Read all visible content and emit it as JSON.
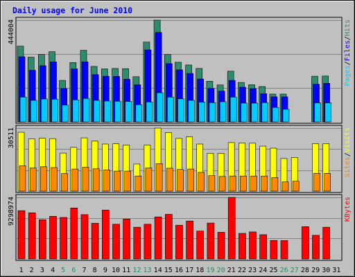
{
  "chart_data": {
    "type": "bar",
    "title": "Daily usage for June 2010",
    "categories": [
      "1",
      "2",
      "3",
      "4",
      "5",
      "6",
      "7",
      "8",
      "9",
      "10",
      "11",
      "12",
      "13",
      "14",
      "15",
      "16",
      "17",
      "18",
      "19",
      "20",
      "21",
      "22",
      "23",
      "24",
      "25",
      "26",
      "27",
      "28",
      "29",
      "30",
      "31"
    ],
    "weekend_days": [
      "5",
      "6",
      "12",
      "13",
      "19",
      "20",
      "26",
      "27"
    ],
    "panels": [
      {
        "id": "hits",
        "ymax_label": "444004",
        "ylim": [
          0,
          444004
        ],
        "legend": [
          "Pages",
          "Files",
          "Hits"
        ],
        "series": [
          {
            "name": "Hits",
            "color": "#2e8b6e",
            "values": [
              330000,
              282000,
              294000,
              306000,
              181000,
              259000,
              312000,
              242000,
              231000,
              233000,
              232000,
              197000,
              348000,
              444004,
              294000,
              260000,
              248000,
              233000,
              177000,
              161000,
              221000,
              172000,
              162000,
              154000,
              121000,
              121000,
              0,
              0,
              199000,
              200000,
              0
            ]
          },
          {
            "name": "Files",
            "color": "#0000ff",
            "values": [
              284000,
              225000,
              245000,
              262000,
              146000,
              231000,
              262000,
              206000,
              199000,
              198000,
              186000,
              162000,
              314000,
              390000,
              254000,
              227000,
              211000,
              187000,
              146000,
              134000,
              181000,
              151000,
              145000,
              123000,
              109000,
              109000,
              0,
              0,
              164000,
              168000,
              0
            ]
          },
          {
            "name": "Pages",
            "color": "#00ccff",
            "values": [
              108000,
              94000,
              100000,
              99000,
              73000,
              96000,
              102000,
              94000,
              91000,
              90000,
              89000,
              75000,
              87000,
              127000,
              108000,
              101000,
              94000,
              86000,
              84000,
              88000,
              108000,
              82000,
              82000,
              84000,
              63000,
              55000,
              0,
              0,
              83000,
              83000,
              0
            ]
          }
        ]
      },
      {
        "id": "visits",
        "ymax_label": "30511",
        "ylim": [
          0,
          30511
        ],
        "legend": [
          "Sites",
          "Visits"
        ],
        "series": [
          {
            "name": "Visits",
            "color": "#ffff00",
            "values": [
              28500,
              25300,
              25600,
              25400,
              18400,
              21200,
              25800,
              24200,
              22800,
              22900,
              22300,
              13100,
              22300,
              30511,
              28400,
              25500,
              26300,
              22800,
              18300,
              18300,
              23500,
              23300,
              23200,
              21800,
              20800,
              15800,
              16300,
              0,
              23000,
              23000,
              0
            ]
          },
          {
            "name": "Sites",
            "color": "#ff8800",
            "values": [
              12300,
              11200,
              11800,
              11400,
              8500,
              10700,
              11600,
              10800,
              10300,
              9700,
              9700,
              7300,
              11200,
              13300,
              11100,
              10500,
              10700,
              9100,
              7500,
              7100,
              7300,
              7300,
              7300,
              7300,
              6500,
              4500,
              4800,
              0,
              8600,
              8600,
              0
            ]
          }
        ]
      },
      {
        "id": "kbytes",
        "ymax_label": "9298974",
        "ylim": [
          0,
          9298974
        ],
        "legend": [
          "KBytes"
        ],
        "series": [
          {
            "name": "KBytes",
            "color": "#ff0000",
            "values": [
              7290000,
              6970000,
              5920000,
              6440000,
              6270000,
              7700000,
              6700000,
              5390000,
              7380000,
              5240000,
              6020000,
              4800000,
              5240000,
              6350000,
              6740000,
              5100000,
              5730000,
              4210000,
              5420000,
              4030000,
              9298974,
              3870000,
              4090000,
              3670000,
              2800000,
              2780000,
              0,
              4880000,
              3570000,
              4800000,
              0
            ]
          }
        ]
      }
    ]
  }
}
